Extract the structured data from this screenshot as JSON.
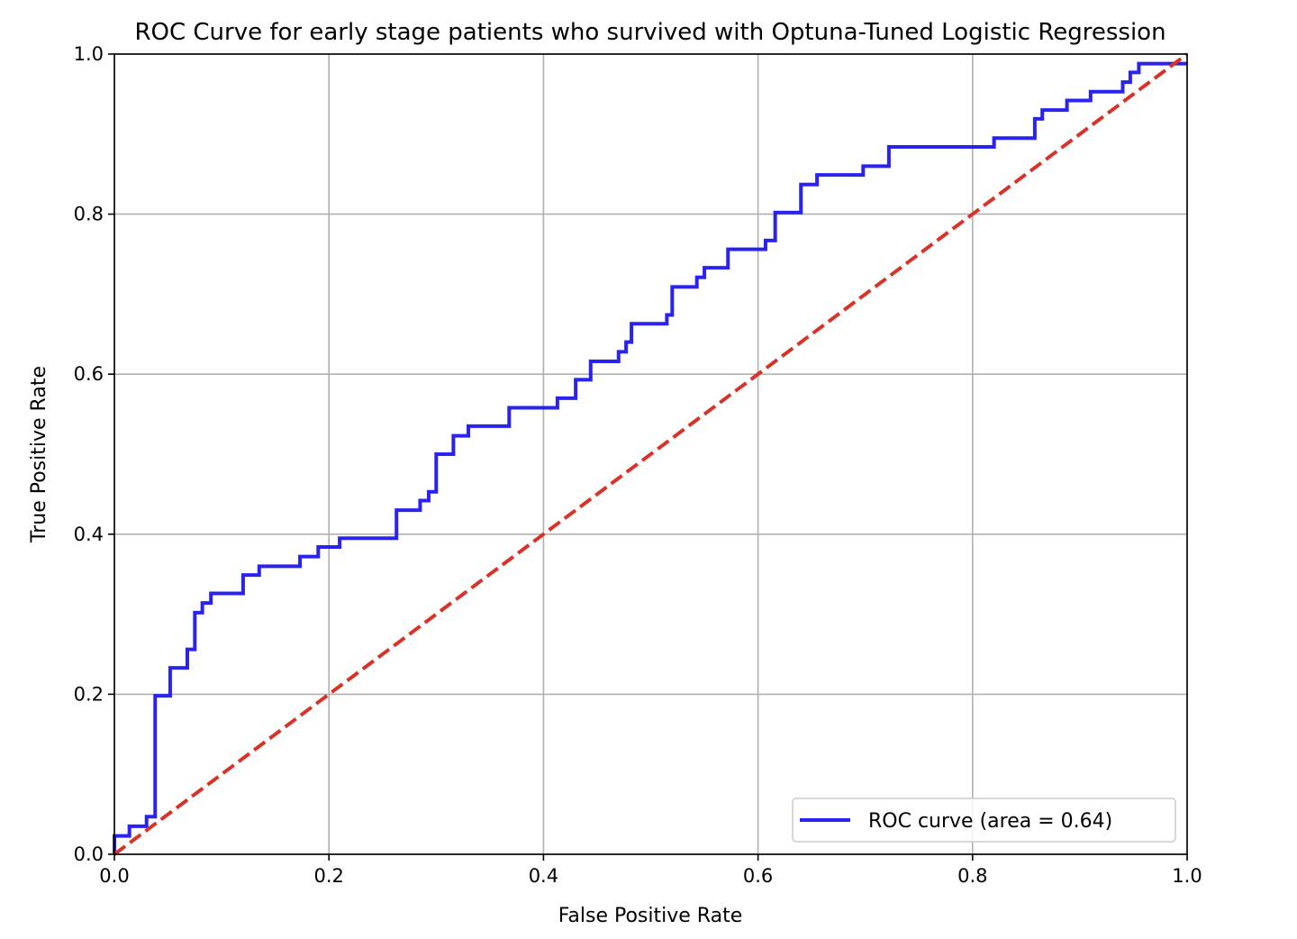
{
  "chart_data": {
    "type": "line",
    "title": "ROC Curve for early stage patients who survived with Optuna-Tuned Logistic Regression",
    "xlabel": "False Positive Rate",
    "ylabel": "True Positive Rate",
    "xlim": [
      0.0,
      1.0
    ],
    "ylim": [
      0.0,
      1.0
    ],
    "xticks": [
      "0.0",
      "0.2",
      "0.4",
      "0.6",
      "0.8",
      "1.0"
    ],
    "yticks": [
      "0.0",
      "0.2",
      "0.4",
      "0.6",
      "0.8",
      "1.0"
    ],
    "grid": true,
    "legend_position": "lower-right",
    "series": [
      {
        "name": "ROC curve (area = 0.64)",
        "color": "#2a22f0",
        "style": "solid",
        "x": [
          0.0,
          0.0,
          0.014,
          0.014,
          0.03,
          0.03,
          0.038,
          0.038,
          0.052,
          0.052,
          0.068,
          0.068,
          0.075,
          0.075,
          0.082,
          0.082,
          0.09,
          0.09,
          0.12,
          0.12,
          0.135,
          0.135,
          0.173,
          0.173,
          0.19,
          0.19,
          0.21,
          0.21,
          0.263,
          0.263,
          0.285,
          0.285,
          0.293,
          0.293,
          0.3,
          0.3,
          0.316,
          0.316,
          0.33,
          0.33,
          0.368,
          0.368,
          0.413,
          0.413,
          0.43,
          0.43,
          0.444,
          0.444,
          0.47,
          0.47,
          0.477,
          0.477,
          0.482,
          0.482,
          0.515,
          0.515,
          0.52,
          0.52,
          0.543,
          0.543,
          0.55,
          0.55,
          0.572,
          0.572,
          0.607,
          0.607,
          0.616,
          0.616,
          0.64,
          0.64,
          0.655,
          0.655,
          0.698,
          0.698,
          0.722,
          0.722,
          0.82,
          0.82,
          0.858,
          0.858,
          0.865,
          0.865,
          0.888,
          0.888,
          0.91,
          0.91,
          0.94,
          0.94,
          0.947,
          0.947,
          0.955,
          0.955,
          1.0
        ],
        "y": [
          0.0,
          0.023,
          0.023,
          0.035,
          0.035,
          0.047,
          0.047,
          0.198,
          0.198,
          0.233,
          0.233,
          0.256,
          0.256,
          0.302,
          0.302,
          0.314,
          0.314,
          0.326,
          0.326,
          0.349,
          0.349,
          0.36,
          0.36,
          0.372,
          0.372,
          0.384,
          0.384,
          0.395,
          0.395,
          0.43,
          0.43,
          0.442,
          0.442,
          0.453,
          0.453,
          0.5,
          0.5,
          0.523,
          0.523,
          0.535,
          0.535,
          0.558,
          0.558,
          0.57,
          0.57,
          0.593,
          0.593,
          0.616,
          0.616,
          0.628,
          0.628,
          0.64,
          0.64,
          0.663,
          0.663,
          0.674,
          0.674,
          0.709,
          0.709,
          0.721,
          0.721,
          0.733,
          0.733,
          0.756,
          0.756,
          0.767,
          0.767,
          0.802,
          0.802,
          0.837,
          0.837,
          0.849,
          0.849,
          0.86,
          0.86,
          0.884,
          0.884,
          0.895,
          0.895,
          0.919,
          0.919,
          0.93,
          0.93,
          0.942,
          0.942,
          0.953,
          0.953,
          0.965,
          0.965,
          0.977,
          0.977,
          0.988,
          0.988
        ]
      },
      {
        "name": "",
        "color": "#d83328",
        "style": "dashed",
        "x": [
          0.0,
          1.0
        ],
        "y": [
          0.0,
          1.0
        ]
      }
    ]
  }
}
